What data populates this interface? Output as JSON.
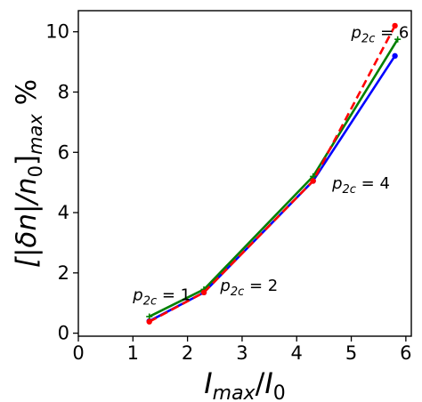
{
  "chart_data": {
    "type": "line",
    "xlabel_parts": {
      "base": "I",
      "sub": "max",
      "sep": "/",
      "base2": "I",
      "sub2": "0"
    },
    "ylabel_parts": {
      "open": "[|δn|/n",
      "sub0": "0",
      "close": "]",
      "sub": "max",
      "unit": " %"
    },
    "xlim": [
      0,
      6.1
    ],
    "ylim": [
      -0.1,
      10.7
    ],
    "xticks": [
      "0",
      "1",
      "2",
      "3",
      "4",
      "5",
      "6"
    ],
    "xtick_values": [
      0,
      1,
      2,
      3,
      4,
      5,
      6
    ],
    "yticks": [
      "0",
      "2",
      "4",
      "6",
      "8",
      "10"
    ],
    "ytick_values": [
      0,
      2,
      4,
      6,
      8,
      10
    ],
    "grid": false,
    "series": [
      {
        "color": "#0000ff",
        "dash": "solid",
        "marker": "circle",
        "x": [
          1.3,
          2.3,
          4.3,
          5.8
        ],
        "y": [
          0.4,
          1.35,
          5.05,
          9.2
        ]
      },
      {
        "color": "#008000",
        "dash": "solid",
        "marker": "plus",
        "x": [
          1.3,
          2.3,
          4.3,
          5.85
        ],
        "y": [
          0.55,
          1.45,
          5.2,
          9.75
        ]
      },
      {
        "color": "#ff0000",
        "dash": "dashed",
        "marker": "circle",
        "x": [
          1.3,
          2.3,
          4.3,
          5.8
        ],
        "y": [
          0.38,
          1.35,
          5.05,
          10.2
        ]
      }
    ],
    "annotations": [
      {
        "p": "p",
        "sub": "2c",
        "eq": " = 1",
        "x": 1.0,
        "y": 1.1
      },
      {
        "p": "p",
        "sub": "2c",
        "eq": " = 2",
        "x": 2.6,
        "y": 1.4
      },
      {
        "p": "p",
        "sub": "2c",
        "eq": " = 4",
        "x": 4.65,
        "y": 4.8
      },
      {
        "p": "p",
        "sub": "2c",
        "eq": " = 6",
        "x": 5.0,
        "y": 9.8
      }
    ]
  }
}
